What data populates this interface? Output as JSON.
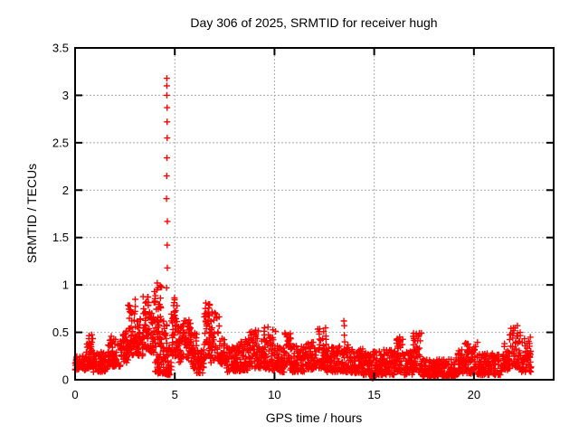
{
  "window": {
    "background": "#ffffff"
  },
  "chart_data": {
    "type": "scatter",
    "title": "Day 306 of 2025, SRMTID for receiver hugh",
    "xlabel": "GPS time / hours",
    "ylabel": "SRMTID / TECUs",
    "xlim": [
      0,
      24
    ],
    "ylim": [
      0,
      3.5
    ],
    "xticks": [
      {
        "value": 0,
        "label": "0"
      },
      {
        "value": 5,
        "label": "5"
      },
      {
        "value": 10,
        "label": "10"
      },
      {
        "value": 15,
        "label": "15"
      },
      {
        "value": 20,
        "label": "20"
      }
    ],
    "yticks": [
      {
        "value": 0,
        "label": "0"
      },
      {
        "value": 0.5,
        "label": "0.5"
      },
      {
        "value": 1,
        "label": "1"
      },
      {
        "value": 1.5,
        "label": "1.5"
      },
      {
        "value": 2,
        "label": "2"
      },
      {
        "value": 2.5,
        "label": "2.5"
      },
      {
        "value": 3,
        "label": "3"
      },
      {
        "value": 3.5,
        "label": "3.5"
      }
    ],
    "grid": true,
    "legend_position": "none",
    "marker": {
      "glyph": "plus",
      "color": "#ff0000",
      "size": 7
    },
    "colors": {
      "points": "#ff0000",
      "border": "#000000",
      "gridline": "#aaaaaa",
      "text": "#000000",
      "background": "#ffffff"
    },
    "series_name": "SRMTID",
    "data_time_span_hours": [
      0,
      22.9
    ],
    "spike": {
      "t": 4.58,
      "values": [
        3.18,
        3.1,
        3.0,
        2.87,
        2.72,
        2.55,
        2.34,
        2.15,
        1.91,
        1.67,
        1.42,
        1.18,
        0.97
      ]
    },
    "isolated_points": [
      [
        14.9,
        0.02
      ],
      [
        14.93,
        0.015
      ],
      [
        14.96,
        0.025
      ],
      [
        14.93,
        0.04
      ],
      [
        13.48,
        0.62
      ],
      [
        13.5,
        0.57
      ],
      [
        13.5,
        0.47
      ],
      [
        13.52,
        0.4
      ],
      [
        13.49,
        0.31
      ],
      [
        16.28,
        0.45
      ],
      [
        16.3,
        0.4
      ],
      [
        16.31,
        0.34
      ],
      [
        22.18,
        0.57
      ],
      [
        4.12,
        1.02
      ]
    ],
    "envelope_note": "dense scatter band; each segment = [t_start_h, t_end_h, y_min_TECU, y_max_TECU, n_points]",
    "envelope": [
      [
        0.0,
        0.55,
        0.1,
        0.26,
        60
      ],
      [
        0.55,
        0.9,
        0.12,
        0.48,
        42
      ],
      [
        0.9,
        1.6,
        0.08,
        0.3,
        80
      ],
      [
        1.6,
        2.3,
        0.14,
        0.46,
        80
      ],
      [
        2.3,
        2.65,
        0.18,
        0.52,
        42
      ],
      [
        2.65,
        3.05,
        0.25,
        0.85,
        50
      ],
      [
        3.05,
        3.4,
        0.25,
        0.65,
        42
      ],
      [
        3.4,
        3.7,
        0.32,
        0.93,
        42
      ],
      [
        3.7,
        3.95,
        0.28,
        0.75,
        32
      ],
      [
        3.95,
        4.35,
        0.35,
        1.0,
        55
      ],
      [
        4.0,
        4.6,
        0.06,
        0.3,
        38
      ],
      [
        4.35,
        4.62,
        0.2,
        0.62,
        26
      ],
      [
        4.62,
        4.82,
        0.05,
        0.35,
        30
      ],
      [
        4.82,
        5.12,
        0.25,
        0.9,
        46
      ],
      [
        5.12,
        5.45,
        0.18,
        0.6,
        40
      ],
      [
        5.45,
        5.8,
        0.22,
        0.63,
        40
      ],
      [
        5.8,
        6.1,
        0.12,
        0.5,
        35
      ],
      [
        6.1,
        6.45,
        0.07,
        0.32,
        40
      ],
      [
        6.45,
        6.8,
        0.22,
        0.84,
        46
      ],
      [
        6.8,
        7.25,
        0.18,
        0.72,
        50
      ],
      [
        7.25,
        7.6,
        0.12,
        0.45,
        36
      ],
      [
        7.6,
        8.3,
        0.08,
        0.36,
        75
      ],
      [
        8.3,
        8.75,
        0.1,
        0.45,
        50
      ],
      [
        8.75,
        9.55,
        0.12,
        0.55,
        85
      ],
      [
        9.55,
        10.15,
        0.1,
        0.57,
        65
      ],
      [
        10.15,
        10.5,
        0.08,
        0.36,
        40
      ],
      [
        10.5,
        10.85,
        0.1,
        0.5,
        42
      ],
      [
        10.85,
        11.55,
        0.08,
        0.36,
        75
      ],
      [
        11.55,
        12.1,
        0.1,
        0.4,
        60
      ],
      [
        12.1,
        12.6,
        0.12,
        0.55,
        55
      ],
      [
        12.6,
        13.25,
        0.08,
        0.36,
        70
      ],
      [
        13.25,
        13.7,
        0.08,
        0.38,
        45
      ],
      [
        13.7,
        14.45,
        0.07,
        0.33,
        80
      ],
      [
        14.45,
        15.45,
        0.05,
        0.3,
        100
      ],
      [
        15.45,
        16.1,
        0.05,
        0.32,
        65
      ],
      [
        16.1,
        16.45,
        0.08,
        0.44,
        40
      ],
      [
        16.45,
        16.95,
        0.05,
        0.3,
        50
      ],
      [
        16.95,
        17.4,
        0.08,
        0.5,
        50
      ],
      [
        17.4,
        19.1,
        0.03,
        0.22,
        165
      ],
      [
        19.1,
        19.55,
        0.05,
        0.32,
        45
      ],
      [
        19.55,
        20.2,
        0.06,
        0.4,
        62
      ],
      [
        20.2,
        21.4,
        0.05,
        0.28,
        115
      ],
      [
        21.4,
        21.75,
        0.1,
        0.4,
        40
      ],
      [
        21.75,
        22.35,
        0.12,
        0.55,
        62
      ],
      [
        22.35,
        22.9,
        0.08,
        0.45,
        55
      ]
    ]
  }
}
